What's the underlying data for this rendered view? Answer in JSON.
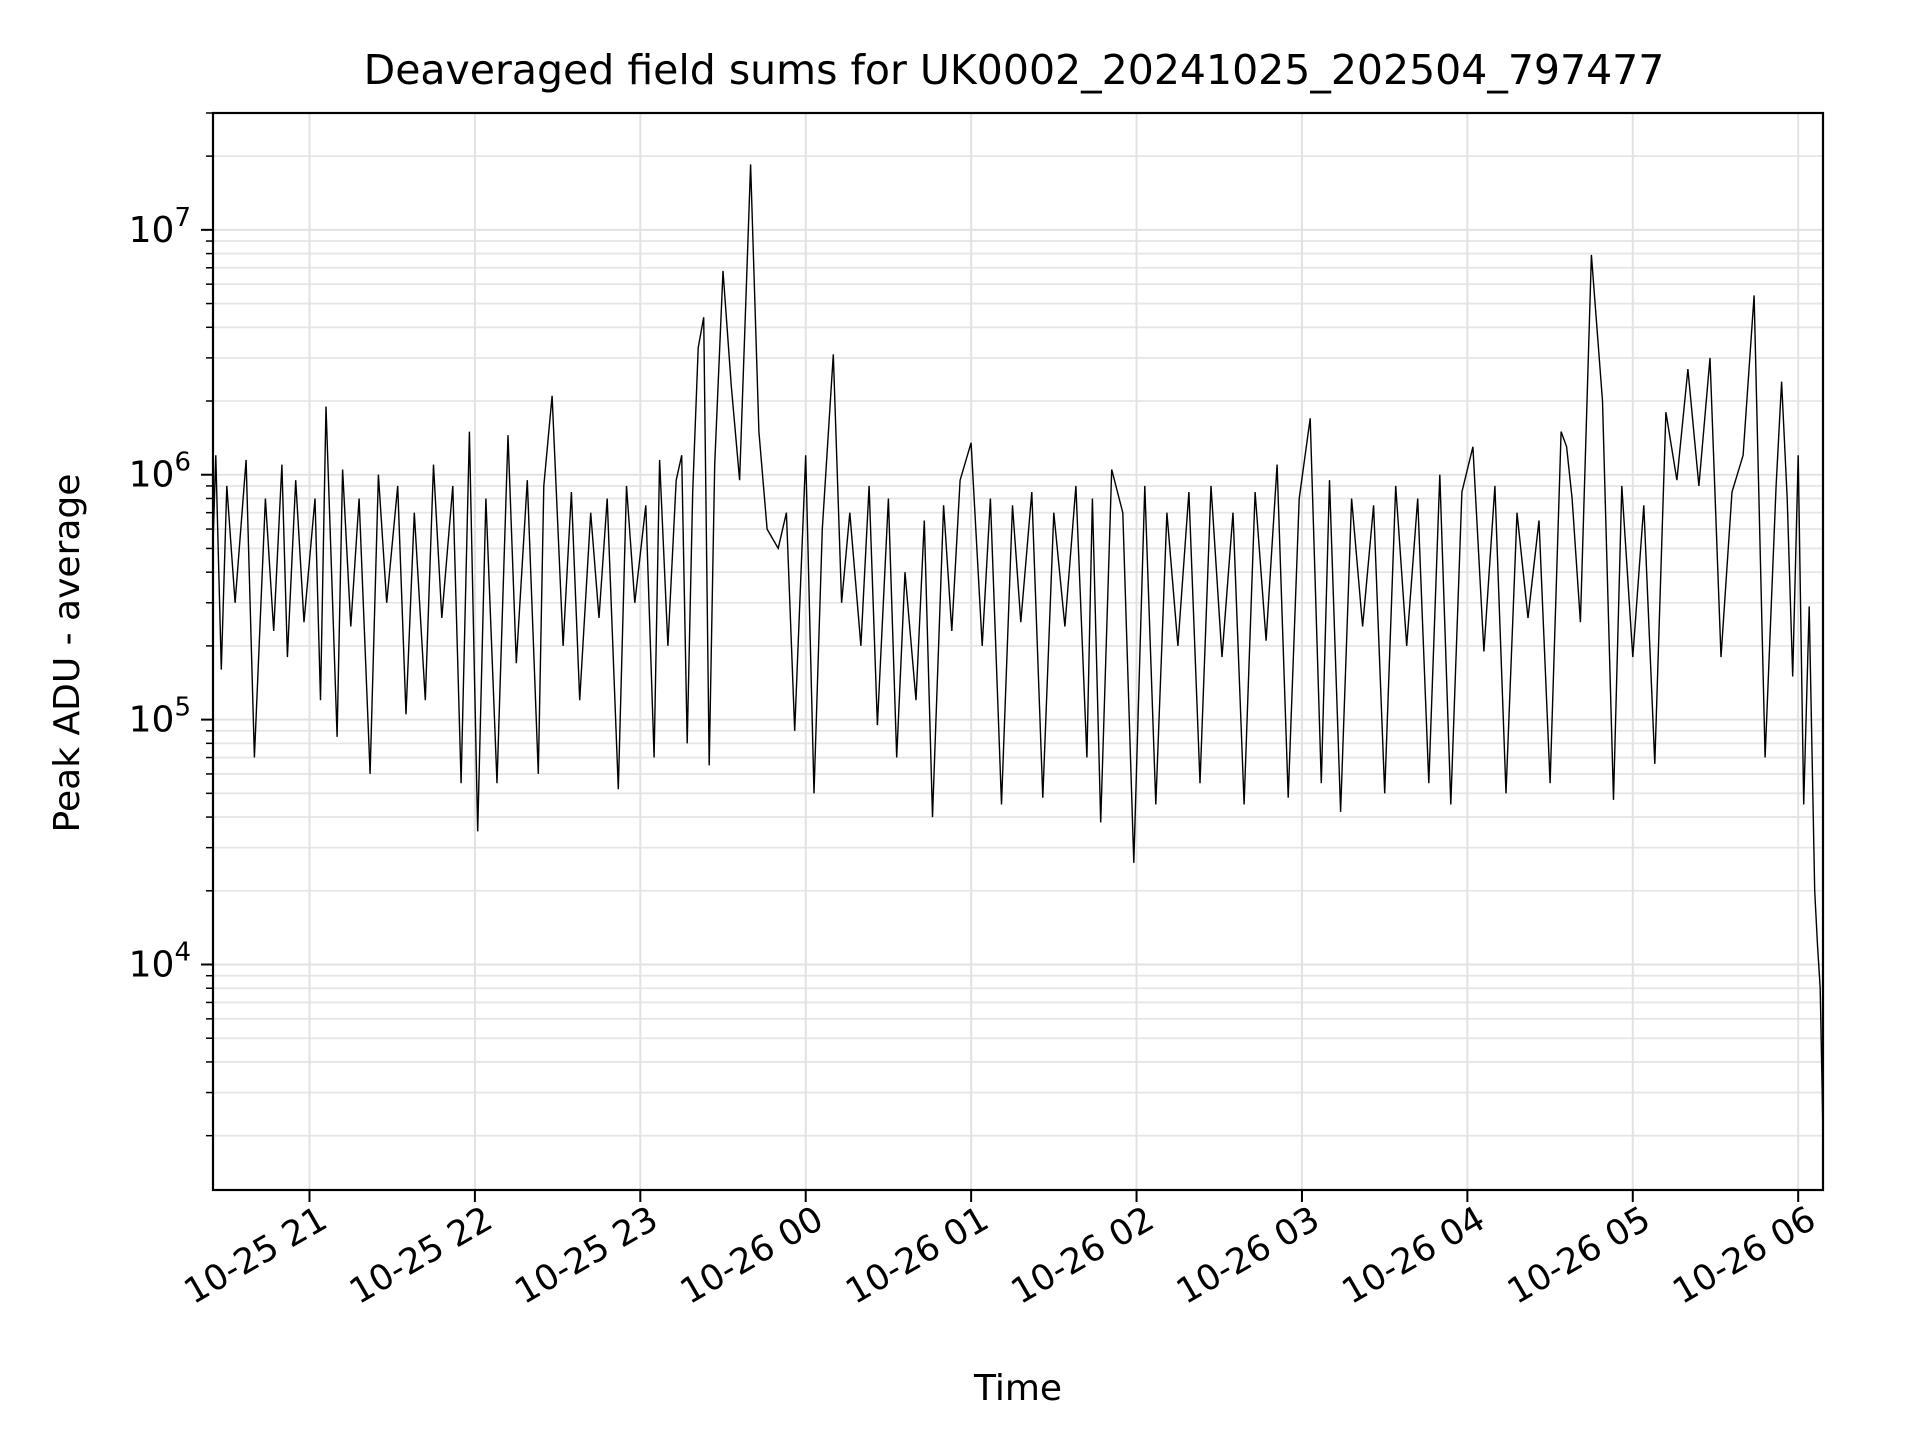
{
  "chart_data": {
    "type": "line",
    "title": "Deaveraged field sums for UK0002_20241025_202504_797477",
    "xlabel": "Time",
    "ylabel": "Peak ADU - average",
    "yscale": "log",
    "grid": true,
    "legend": "none",
    "line_color": "#000000",
    "xlim": [
      "2024-10-25 20:25",
      "2024-10-26 06:09"
    ],
    "ylim": [
      1200,
      30000000
    ],
    "x_ticks": [
      {
        "value": "2024-10-25 21:00",
        "label": "10-25 21"
      },
      {
        "value": "2024-10-25 22:00",
        "label": "10-25 22"
      },
      {
        "value": "2024-10-25 23:00",
        "label": "10-25 23"
      },
      {
        "value": "2024-10-26 00:00",
        "label": "10-26 00"
      },
      {
        "value": "2024-10-26 01:00",
        "label": "10-26 01"
      },
      {
        "value": "2024-10-26 02:00",
        "label": "10-26 02"
      },
      {
        "value": "2024-10-26 03:00",
        "label": "10-26 03"
      },
      {
        "value": "2024-10-26 04:00",
        "label": "10-26 04"
      },
      {
        "value": "2024-10-26 05:00",
        "label": "10-26 05"
      },
      {
        "value": "2024-10-26 06:00",
        "label": "10-26 06"
      }
    ],
    "y_ticks": [
      {
        "value": 10000,
        "base": "10",
        "exp": "4"
      },
      {
        "value": 100000,
        "base": "10",
        "exp": "5"
      },
      {
        "value": 1000000,
        "base": "10",
        "exp": "6"
      },
      {
        "value": 10000000,
        "base": "10",
        "exp": "7"
      }
    ],
    "series": [
      {
        "x": [
          "2024-10-25 20:25",
          "2024-10-25 20:26",
          "2024-10-25 20:28",
          "2024-10-25 20:30",
          "2024-10-25 20:33",
          "2024-10-25 20:37",
          "2024-10-25 20:40",
          "2024-10-25 20:44",
          "2024-10-25 20:47",
          "2024-10-25 20:50",
          "2024-10-25 20:52",
          "2024-10-25 20:55",
          "2024-10-25 20:58",
          "2024-10-25 21:02",
          "2024-10-25 21:04",
          "2024-10-25 21:06",
          "2024-10-25 21:10",
          "2024-10-25 21:12",
          "2024-10-25 21:15",
          "2024-10-25 21:18",
          "2024-10-25 21:22",
          "2024-10-25 21:25",
          "2024-10-25 21:28",
          "2024-10-25 21:32",
          "2024-10-25 21:35",
          "2024-10-25 21:38",
          "2024-10-25 21:42",
          "2024-10-25 21:45",
          "2024-10-25 21:48",
          "2024-10-25 21:52",
          "2024-10-25 21:55",
          "2024-10-25 21:58",
          "2024-10-25 22:01",
          "2024-10-25 22:04",
          "2024-10-25 22:08",
          "2024-10-25 22:12",
          "2024-10-25 22:15",
          "2024-10-25 22:19",
          "2024-10-25 22:23",
          "2024-10-25 22:25",
          "2024-10-25 22:28",
          "2024-10-25 22:32",
          "2024-10-25 22:35",
          "2024-10-25 22:38",
          "2024-10-25 22:42",
          "2024-10-25 22:45",
          "2024-10-25 22:48",
          "2024-10-25 22:52",
          "2024-10-25 22:55",
          "2024-10-25 22:58",
          "2024-10-25 23:02",
          "2024-10-25 23:05",
          "2024-10-25 23:07",
          "2024-10-25 23:10",
          "2024-10-25 23:13",
          "2024-10-25 23:15",
          "2024-10-25 23:17",
          "2024-10-25 23:19",
          "2024-10-25 23:21",
          "2024-10-25 23:23",
          "2024-10-25 23:25",
          "2024-10-25 23:27",
          "2024-10-25 23:30",
          "2024-10-25 23:33",
          "2024-10-25 23:36",
          "2024-10-25 23:40",
          "2024-10-25 23:43",
          "2024-10-25 23:46",
          "2024-10-25 23:50",
          "2024-10-25 23:53",
          "2024-10-25 23:56",
          "2024-10-26 00:00",
          "2024-10-26 00:03",
          "2024-10-26 00:06",
          "2024-10-26 00:10",
          "2024-10-26 00:13",
          "2024-10-26 00:16",
          "2024-10-26 00:20",
          "2024-10-26 00:23",
          "2024-10-26 00:26",
          "2024-10-26 00:30",
          "2024-10-26 00:33",
          "2024-10-26 00:36",
          "2024-10-26 00:40",
          "2024-10-26 00:43",
          "2024-10-26 00:46",
          "2024-10-26 00:50",
          "2024-10-26 00:53",
          "2024-10-26 00:56",
          "2024-10-26 01:00",
          "2024-10-26 01:04",
          "2024-10-26 01:07",
          "2024-10-26 01:11",
          "2024-10-26 01:15",
          "2024-10-26 01:18",
          "2024-10-26 01:22",
          "2024-10-26 01:26",
          "2024-10-26 01:30",
          "2024-10-26 01:34",
          "2024-10-26 01:38",
          "2024-10-26 01:42",
          "2024-10-26 01:44",
          "2024-10-26 01:47",
          "2024-10-26 01:51",
          "2024-10-26 01:55",
          "2024-10-26 01:59",
          "2024-10-26 02:03",
          "2024-10-26 02:07",
          "2024-10-26 02:11",
          "2024-10-26 02:15",
          "2024-10-26 02:19",
          "2024-10-26 02:23",
          "2024-10-26 02:27",
          "2024-10-26 02:31",
          "2024-10-26 02:35",
          "2024-10-26 02:39",
          "2024-10-26 02:43",
          "2024-10-26 02:47",
          "2024-10-26 02:51",
          "2024-10-26 02:55",
          "2024-10-26 02:59",
          "2024-10-26 03:03",
          "2024-10-26 03:07",
          "2024-10-26 03:10",
          "2024-10-26 03:14",
          "2024-10-26 03:18",
          "2024-10-26 03:22",
          "2024-10-26 03:26",
          "2024-10-26 03:30",
          "2024-10-26 03:34",
          "2024-10-26 03:38",
          "2024-10-26 03:42",
          "2024-10-26 03:46",
          "2024-10-26 03:50",
          "2024-10-26 03:54",
          "2024-10-26 03:58",
          "2024-10-26 04:02",
          "2024-10-26 04:06",
          "2024-10-26 04:10",
          "2024-10-26 04:14",
          "2024-10-26 04:18",
          "2024-10-26 04:22",
          "2024-10-26 04:26",
          "2024-10-26 04:30",
          "2024-10-26 04:34",
          "2024-10-26 04:36",
          "2024-10-26 04:38",
          "2024-10-26 04:41",
          "2024-10-26 04:45",
          "2024-10-26 04:49",
          "2024-10-26 04:53",
          "2024-10-26 04:56",
          "2024-10-26 05:00",
          "2024-10-26 05:04",
          "2024-10-26 05:08",
          "2024-10-26 05:12",
          "2024-10-26 05:16",
          "2024-10-26 05:20",
          "2024-10-26 05:24",
          "2024-10-26 05:28",
          "2024-10-26 05:32",
          "2024-10-26 05:36",
          "2024-10-26 05:40",
          "2024-10-26 05:44",
          "2024-10-26 05:48",
          "2024-10-26 05:52",
          "2024-10-26 05:54",
          "2024-10-26 05:56",
          "2024-10-26 05:58",
          "2024-10-26 06:00",
          "2024-10-26 06:02",
          "2024-10-26 06:04",
          "2024-10-26 06:06",
          "2024-10-26 06:07",
          "2024-10-26 06:08",
          "2024-10-26 06:09"
        ],
        "y": [
          520000,
          1200000,
          160000,
          900000,
          300000,
          1150000,
          70000,
          800000,
          230000,
          1100000,
          180000,
          950000,
          250000,
          800000,
          120000,
          1900000,
          85000,
          1050000,
          240000,
          800000,
          60000,
          1000000,
          300000,
          900000,
          105000,
          700000,
          120000,
          1100000,
          260000,
          900000,
          55000,
          1500000,
          35000,
          800000,
          55000,
          1450000,
          170000,
          950000,
          60000,
          900000,
          2100000,
          200000,
          850000,
          120000,
          700000,
          260000,
          800000,
          52000,
          900000,
          300000,
          750000,
          70000,
          1150000,
          200000,
          950000,
          1200000,
          80000,
          850000,
          3300000,
          4400000,
          65000,
          1100000,
          6800000,
          2300000,
          950000,
          18500000,
          1500000,
          600000,
          500000,
          700000,
          90000,
          1200000,
          50000,
          600000,
          3100000,
          300000,
          700000,
          200000,
          900000,
          95000,
          800000,
          70000,
          400000,
          120000,
          650000,
          40000,
          750000,
          230000,
          950000,
          1350000,
          200000,
          800000,
          45000,
          750000,
          250000,
          850000,
          48000,
          700000,
          240000,
          900000,
          70000,
          800000,
          38000,
          1050000,
          700000,
          26000,
          900000,
          45000,
          700000,
          200000,
          850000,
          55000,
          900000,
          180000,
          700000,
          45000,
          850000,
          210000,
          1100000,
          48000,
          800000,
          1700000,
          55000,
          950000,
          42000,
          800000,
          240000,
          750000,
          50000,
          900000,
          200000,
          800000,
          55000,
          1000000,
          45000,
          850000,
          1300000,
          190000,
          900000,
          50000,
          700000,
          260000,
          650000,
          55000,
          1500000,
          1300000,
          800000,
          250000,
          7900000,
          2000000,
          47000,
          900000,
          180000,
          750000,
          66000,
          1800000,
          950000,
          2700000,
          900000,
          3000000,
          180000,
          850000,
          1200000,
          5400000,
          70000,
          900000,
          2400000,
          800000,
          150000,
          1200000,
          45000,
          290000,
          20000,
          12000,
          8000,
          2000
        ]
      }
    ]
  }
}
